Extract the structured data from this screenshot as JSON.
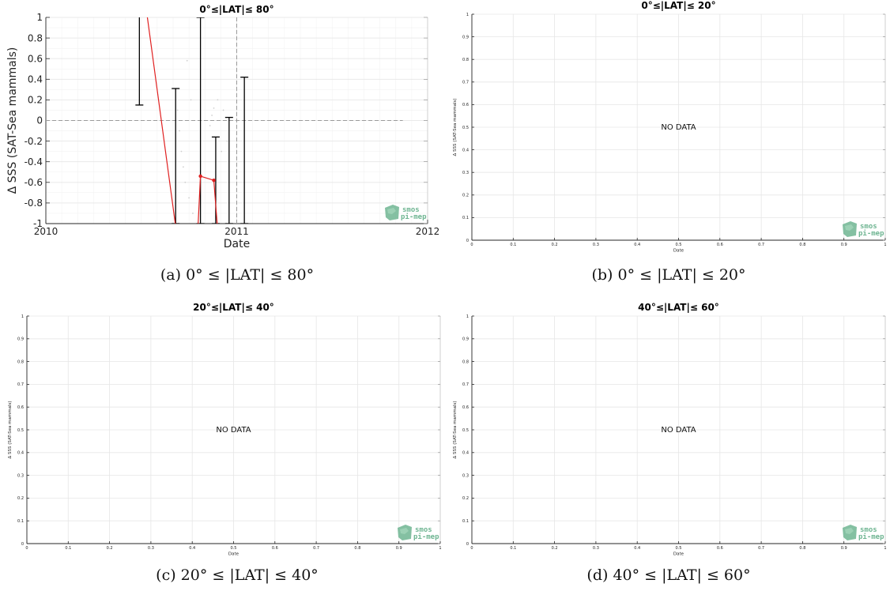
{
  "colors": {
    "grid": "#e6e6e6",
    "axis": "#262626",
    "series": "#e02020",
    "errorbar": "#000000",
    "zero_line": "#9a9a9a",
    "logo": "#6fb592"
  },
  "logo": {
    "line1": "smos",
    "line2": "pi-mep",
    "icon": "smos-pimep-logo-icon"
  },
  "chart_data": [
    {
      "id": "a",
      "type": "line",
      "title": "0°≤|LAT|≤ 80°",
      "caption": "(a) 0° ≤ |LAT| ≤ 80°",
      "xlabel": "Date",
      "ylabel": "Δ SSS (SAT-Sea mammals)",
      "xlim": [
        2010,
        2012
      ],
      "ylim": [
        -1,
        1
      ],
      "xticks": [
        2010,
        2011,
        2012
      ],
      "xtick_labels": [
        "2010",
        "2011",
        "2012"
      ],
      "yticks": [
        -1,
        -0.8,
        -0.6,
        -0.4,
        -0.2,
        0,
        0.2,
        0.4,
        0.6,
        0.8,
        1
      ],
      "ytick_labels": [
        "-1",
        "-0.8",
        "-0.6",
        "-0.4",
        "-0.2",
        "0",
        "0.2",
        "0.4",
        "0.6",
        "0.8",
        "1"
      ],
      "grid": true,
      "zero_reference_line": {
        "y": 0,
        "x_end": 2011.87
      },
      "vertical_reference_line": {
        "x": 2011.0
      },
      "series": [
        {
          "x": [
            2010.51,
            2010.7
          ],
          "y": [
            1.3,
            -1.3
          ]
        },
        {
          "x": [
            2010.79,
            2010.81,
            2010.88,
            2010.91
          ],
          "y": [
            -1.3,
            -0.54,
            -0.58,
            -1.3
          ]
        }
      ],
      "points": [
        {
          "x": 2010.81,
          "y": -0.54
        },
        {
          "x": 2010.88,
          "y": -0.58
        }
      ],
      "errorbars": [
        {
          "x": 2010.49,
          "low": 0.15,
          "high": 1.1
        },
        {
          "x": 2010.68,
          "low": -1,
          "high": 0.31
        },
        {
          "x": 2010.81,
          "low": -1,
          "high": 1
        },
        {
          "x": 2010.89,
          "low": -1,
          "high": -0.16
        },
        {
          "x": 2010.96,
          "low": -1,
          "high": 0.03
        },
        {
          "x": 2011.04,
          "low": -1,
          "high": 0.42
        }
      ],
      "scatter_faint": [
        {
          "x": 2010.69,
          "y": 0.1
        },
        {
          "x": 2010.7,
          "y": -0.1
        },
        {
          "x": 2010.71,
          "y": -0.3
        },
        {
          "x": 2010.72,
          "y": -0.45
        },
        {
          "x": 2010.73,
          "y": -0.6
        },
        {
          "x": 2010.74,
          "y": 0.58
        },
        {
          "x": 2010.75,
          "y": -0.75
        },
        {
          "x": 2010.76,
          "y": 0.2
        },
        {
          "x": 2010.77,
          "y": -0.9
        },
        {
          "x": 2010.86,
          "y": -0.05
        },
        {
          "x": 2010.87,
          "y": 0.05
        },
        {
          "x": 2010.88,
          "y": 0.12
        },
        {
          "x": 2010.9,
          "y": 0.2
        },
        {
          "x": 2010.92,
          "y": -0.3
        },
        {
          "x": 2010.93,
          "y": 0.1
        },
        {
          "x": 2010.95,
          "y": -0.2
        }
      ],
      "no_data": false
    },
    {
      "id": "b",
      "type": "line",
      "title": "0°≤|LAT|≤ 20°",
      "caption": "(b) 0° ≤ |LAT| ≤ 20°",
      "xlabel": "Date",
      "ylabel": "Δ SSS (SAT-Sea mammals)",
      "xlim": [
        0,
        1
      ],
      "ylim": [
        0,
        1
      ],
      "xticks": [
        0,
        0.1,
        0.2,
        0.3,
        0.4,
        0.5,
        0.6,
        0.7,
        0.8,
        0.9,
        1
      ],
      "xtick_labels": [
        "0",
        "0.1",
        "0.2",
        "0.3",
        "0.4",
        "0.5",
        "0.6",
        "0.7",
        "0.8",
        "0.9",
        "1"
      ],
      "yticks": [
        0,
        0.1,
        0.2,
        0.3,
        0.4,
        0.5,
        0.6,
        0.7,
        0.8,
        0.9,
        1
      ],
      "ytick_labels": [
        "0",
        "0.1",
        "0.2",
        "0.3",
        "0.4",
        "0.5",
        "0.6",
        "0.7",
        "0.8",
        "0.9",
        "1"
      ],
      "grid": true,
      "no_data": true,
      "no_data_text": "NO DATA"
    },
    {
      "id": "c",
      "type": "line",
      "title": "20°≤|LAT|≤ 40°",
      "caption": "(c) 20° ≤ |LAT| ≤ 40°",
      "xlabel": "Date",
      "ylabel": "Δ SSS (SAT-Sea mammals)",
      "xlim": [
        0,
        1
      ],
      "ylim": [
        0,
        1
      ],
      "xticks": [
        0,
        0.1,
        0.2,
        0.3,
        0.4,
        0.5,
        0.6,
        0.7,
        0.8,
        0.9,
        1
      ],
      "xtick_labels": [
        "0",
        "0.1",
        "0.2",
        "0.3",
        "0.4",
        "0.5",
        "0.6",
        "0.7",
        "0.8",
        "0.9",
        "1"
      ],
      "yticks": [
        0,
        0.1,
        0.2,
        0.3,
        0.4,
        0.5,
        0.6,
        0.7,
        0.8,
        0.9,
        1
      ],
      "ytick_labels": [
        "0",
        "0.1",
        "0.2",
        "0.3",
        "0.4",
        "0.5",
        "0.6",
        "0.7",
        "0.8",
        "0.9",
        "1"
      ],
      "grid": true,
      "no_data": true,
      "no_data_text": "NO DATA"
    },
    {
      "id": "d",
      "type": "line",
      "title": "40°≤|LAT|≤ 60°",
      "caption": "(d) 40° ≤ |LAT| ≤ 60°",
      "xlabel": "Date",
      "ylabel": "Δ SSS (SAT-Sea mammals)",
      "xlim": [
        0,
        1
      ],
      "ylim": [
        0,
        1
      ],
      "xticks": [
        0,
        0.1,
        0.2,
        0.3,
        0.4,
        0.5,
        0.6,
        0.7,
        0.8,
        0.9,
        1
      ],
      "xtick_labels": [
        "0",
        "0.1",
        "0.2",
        "0.3",
        "0.4",
        "0.5",
        "0.6",
        "0.7",
        "0.8",
        "0.9",
        "1"
      ],
      "yticks": [
        0,
        0.1,
        0.2,
        0.3,
        0.4,
        0.5,
        0.6,
        0.7,
        0.8,
        0.9,
        1
      ],
      "ytick_labels": [
        "0",
        "0.1",
        "0.2",
        "0.3",
        "0.4",
        "0.5",
        "0.6",
        "0.7",
        "0.8",
        "0.9",
        "1"
      ],
      "grid": true,
      "no_data": true,
      "no_data_text": "NO DATA"
    }
  ]
}
